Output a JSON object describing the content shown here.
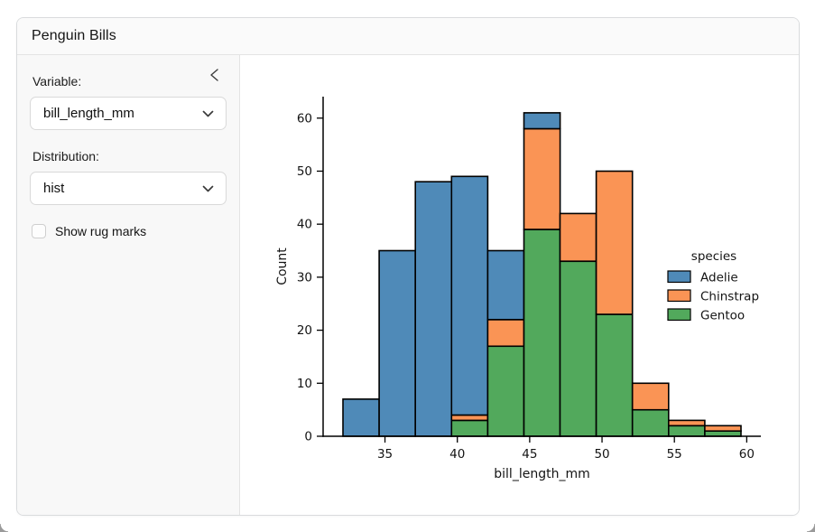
{
  "header": {
    "title": "Penguin Bills"
  },
  "sidebar": {
    "collapse_icon": "chevron-left",
    "variable_label": "Variable:",
    "variable_select": {
      "value": "bill_length_mm",
      "caret_icon": "chevron-down"
    },
    "distribution_label": "Distribution:",
    "distribution_select": {
      "value": "hist",
      "caret_icon": "chevron-down"
    },
    "rug_checkbox": {
      "label": "Show rug marks",
      "checked": false
    }
  },
  "chart_data": {
    "type": "bar",
    "subtype": "stacked-histogram",
    "xlabel": "bill_length_mm",
    "ylabel": "Count",
    "bin_edges": [
      32.1,
      34.6,
      37.1,
      39.6,
      42.1,
      44.6,
      47.1,
      49.6,
      52.1,
      54.6,
      57.1,
      59.6
    ],
    "series": [
      {
        "name": "Adelie",
        "color": "#4f8ab8",
        "values": [
          7,
          35,
          48,
          45,
          13,
          3,
          0,
          0,
          0,
          0,
          0
        ]
      },
      {
        "name": "Chinstrap",
        "color": "#fa9455",
        "values": [
          0,
          0,
          0,
          1,
          5,
          19,
          9,
          27,
          5,
          1,
          1
        ]
      },
      {
        "name": "Gentoo",
        "color": "#52a95c",
        "values": [
          0,
          0,
          0,
          3,
          17,
          39,
          33,
          23,
          5,
          2,
          1
        ]
      }
    ],
    "stack_order": [
      "Gentoo",
      "Chinstrap",
      "Adelie"
    ],
    "bin_totals": [
      7,
      35,
      48,
      49,
      35,
      61,
      42,
      50,
      10,
      3,
      2
    ],
    "legend_title": "species",
    "legend_position": "center-right",
    "xticks": [
      35,
      40,
      45,
      50,
      55,
      60
    ],
    "yticks": [
      0,
      10,
      20,
      30,
      40,
      50,
      60
    ],
    "xlim": [
      30.725,
      60.975
    ],
    "ylim": [
      0,
      64.05
    ],
    "bar_edge_color": "#000000",
    "grid": false
  }
}
